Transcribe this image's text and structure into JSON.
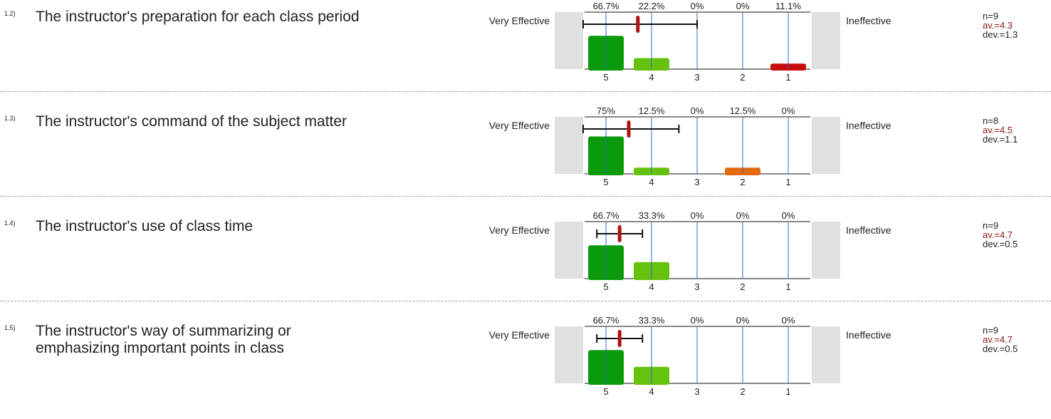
{
  "chart_data": {
    "type": "bar",
    "categories": [
      "5",
      "4",
      "3",
      "2",
      "1"
    ],
    "left_label": "Very Effective",
    "right_label": "Ineffective",
    "colors": [
      "#0b9a0b",
      "#66c20e",
      "#c9c9c9",
      "#e46a0f",
      "#c90d0d"
    ],
    "questions": [
      {
        "number": "1.2)",
        "text": "The instructor's preparation for each class period",
        "percent_labels": [
          "66.7%",
          "22.2%",
          "0%",
          "0%",
          "11.1%"
        ],
        "values": [
          66.7,
          22.2,
          0,
          0,
          11.1
        ],
        "n": "n=9",
        "av": "av.=4.3",
        "dev": "dev.=1.3",
        "mean": 4.3,
        "sd": 1.3
      },
      {
        "number": "1.3)",
        "text": "The instructor's command of the subject matter",
        "percent_labels": [
          "75%",
          "12.5%",
          "0%",
          "12.5%",
          "0%"
        ],
        "values": [
          75,
          12.5,
          0,
          12.5,
          0
        ],
        "n": "n=8",
        "av": "av.=4.5",
        "dev": "dev.=1.1",
        "mean": 4.5,
        "sd": 1.1
      },
      {
        "number": "1.4)",
        "text": "The instructor's use of class time",
        "percent_labels": [
          "66.7%",
          "33.3%",
          "0%",
          "0%",
          "0%"
        ],
        "values": [
          66.7,
          33.3,
          0,
          0,
          0
        ],
        "n": "n=9",
        "av": "av.=4.7",
        "dev": "dev.=0.5",
        "mean": 4.7,
        "sd": 0.5
      },
      {
        "number": "1.5)",
        "text": "The instructor's way of summarizing or emphasizing important points in class",
        "percent_labels": [
          "66.7%",
          "33.3%",
          "0%",
          "0%",
          "0%"
        ],
        "values": [
          66.7,
          33.3,
          0,
          0,
          0
        ],
        "n": "n=9",
        "av": "av.=4.7",
        "dev": "dev.=0.5",
        "mean": 4.7,
        "sd": 0.5
      }
    ]
  }
}
